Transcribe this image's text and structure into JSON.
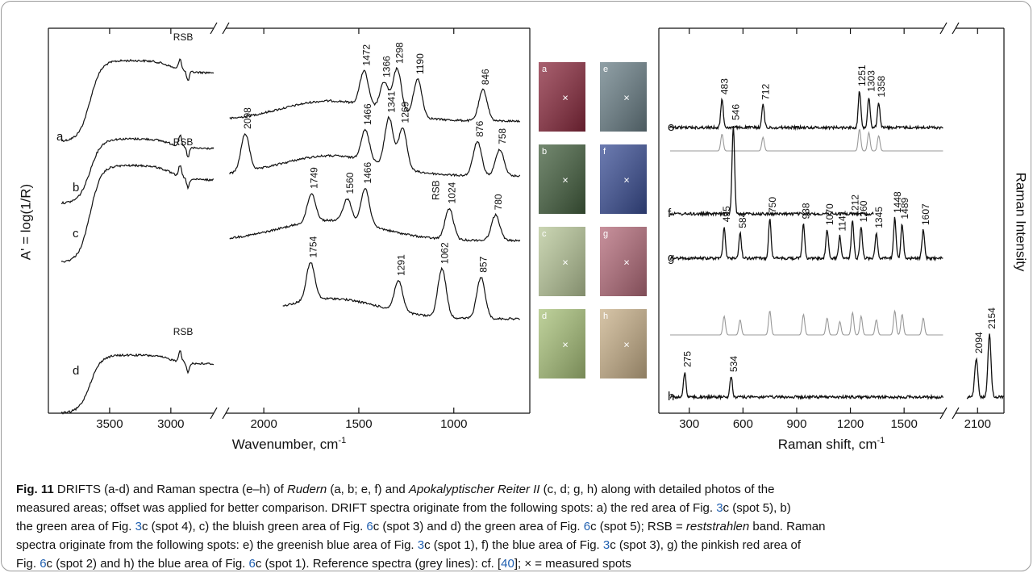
{
  "figure": {
    "left_panel": {
      "y_label": "A' = log(1/R)",
      "x_label": "Wavenumber, cm",
      "x_label_sup": "-1",
      "segments": [
        {
          "xlim": [
            4000,
            2650
          ],
          "xticks": [
            3500,
            3000
          ]
        },
        {
          "xlim": [
            2200,
            600
          ],
          "xticks": [
            2000,
            1500,
            1000
          ]
        }
      ],
      "spectra": [
        {
          "label": "a",
          "note": "RSB",
          "peaks": [
            1472,
            1366,
            1298,
            1190,
            846
          ]
        },
        {
          "label": "b",
          "note": "RSB",
          "peaks": [
            2098,
            1466,
            1341,
            1269,
            876,
            758
          ]
        },
        {
          "label": "c",
          "note": "RSB",
          "peaks": [
            1749,
            1560,
            1466,
            1024,
            780
          ]
        },
        {
          "label": "d",
          "note": "RSB",
          "peaks": [
            1754,
            1291,
            1062,
            857
          ]
        }
      ]
    },
    "photos": {
      "marker": "×",
      "items": [
        {
          "label": "a",
          "color": "#8b2a3e"
        },
        {
          "label": "e",
          "color": "#6b8088"
        },
        {
          "label": "b",
          "color": "#44603f"
        },
        {
          "label": "f",
          "color": "#3b4f96"
        },
        {
          "label": "c",
          "color": "#b9c89a"
        },
        {
          "label": "g",
          "color": "#b56c7b"
        },
        {
          "label": "d",
          "color": "#a9c27a"
        },
        {
          "label": "h",
          "color": "#c9b18a"
        }
      ]
    },
    "right_panel": {
      "y_label": "Raman Intensity",
      "x_label": "Raman shift, cm",
      "x_label_sup": "-1",
      "segments": [
        {
          "xlim": [
            130,
            1720
          ],
          "xticks": [
            300,
            600,
            900,
            1200,
            1500
          ]
        },
        {
          "xlim": [
            2000,
            2220
          ],
          "xticks": [
            2100
          ]
        }
      ],
      "spectra": [
        {
          "label": "e",
          "reference_spectrum": true,
          "peaks": [
            483,
            712,
            1251,
            1303,
            1358
          ]
        },
        {
          "label": "f",
          "reference_spectrum": false,
          "peaks": [
            546
          ]
        },
        {
          "label": "g",
          "reference_spectrum": true,
          "peaks": [
            495,
            584,
            750,
            938,
            1070,
            1141,
            1212,
            1260,
            1345,
            1448,
            1489,
            1607
          ]
        },
        {
          "label": "h",
          "reference_spectrum": false,
          "peaks": [
            275,
            534,
            2094,
            2154
          ]
        }
      ]
    }
  },
  "caption": {
    "lines": [
      [
        {
          "text": "Fig. 11",
          "style": "bold"
        },
        {
          "text": "  DRIFTS (a-d) and Raman spectra (e–h) of "
        },
        {
          "text": "Rudern",
          "style": "italic"
        },
        {
          "text": " (a, b; e, f) and "
        },
        {
          "text": "Apokalyptischer Reiter II",
          "style": "italic"
        },
        {
          "text": " (c, d; g, h) along with detailed photos of the"
        }
      ],
      [
        {
          "text": "measured areas; offset was applied for better comparison. DRIFT spectra originate from the following spots: a) the red area of Fig. "
        },
        {
          "text": "3",
          "style": "link"
        },
        {
          "text": "c (spot 5), b)"
        }
      ],
      [
        {
          "text": "the green area of Fig. "
        },
        {
          "text": "3",
          "style": "link"
        },
        {
          "text": "c (spot 4), c) the bluish green area of Fig. "
        },
        {
          "text": "6",
          "style": "link"
        },
        {
          "text": "c (spot 3) and d) the green area of Fig. "
        },
        {
          "text": "6",
          "style": "link"
        },
        {
          "text": "c (spot 5); RSB = "
        },
        {
          "text": "reststrahlen",
          "style": "italic"
        },
        {
          "text": " band. Raman"
        }
      ],
      [
        {
          "text": "spectra originate from the following spots: e) the greenish blue area of Fig. "
        },
        {
          "text": "3",
          "style": "link"
        },
        {
          "text": "c (spot 1), f) the blue area of Fig. "
        },
        {
          "text": "3",
          "style": "link"
        },
        {
          "text": "c (spot 3), g) the pinkish red area of"
        }
      ],
      [
        {
          "text": "Fig. "
        },
        {
          "text": "6",
          "style": "link"
        },
        {
          "text": "c (spot 2) and h) the blue area of Fig. "
        },
        {
          "text": "6",
          "style": "link"
        },
        {
          "text": "c (spot 1). Reference spectra (grey lines): cf. ["
        },
        {
          "text": "40",
          "style": "link"
        },
        {
          "text": "]; × = measured spots"
        }
      ]
    ]
  }
}
